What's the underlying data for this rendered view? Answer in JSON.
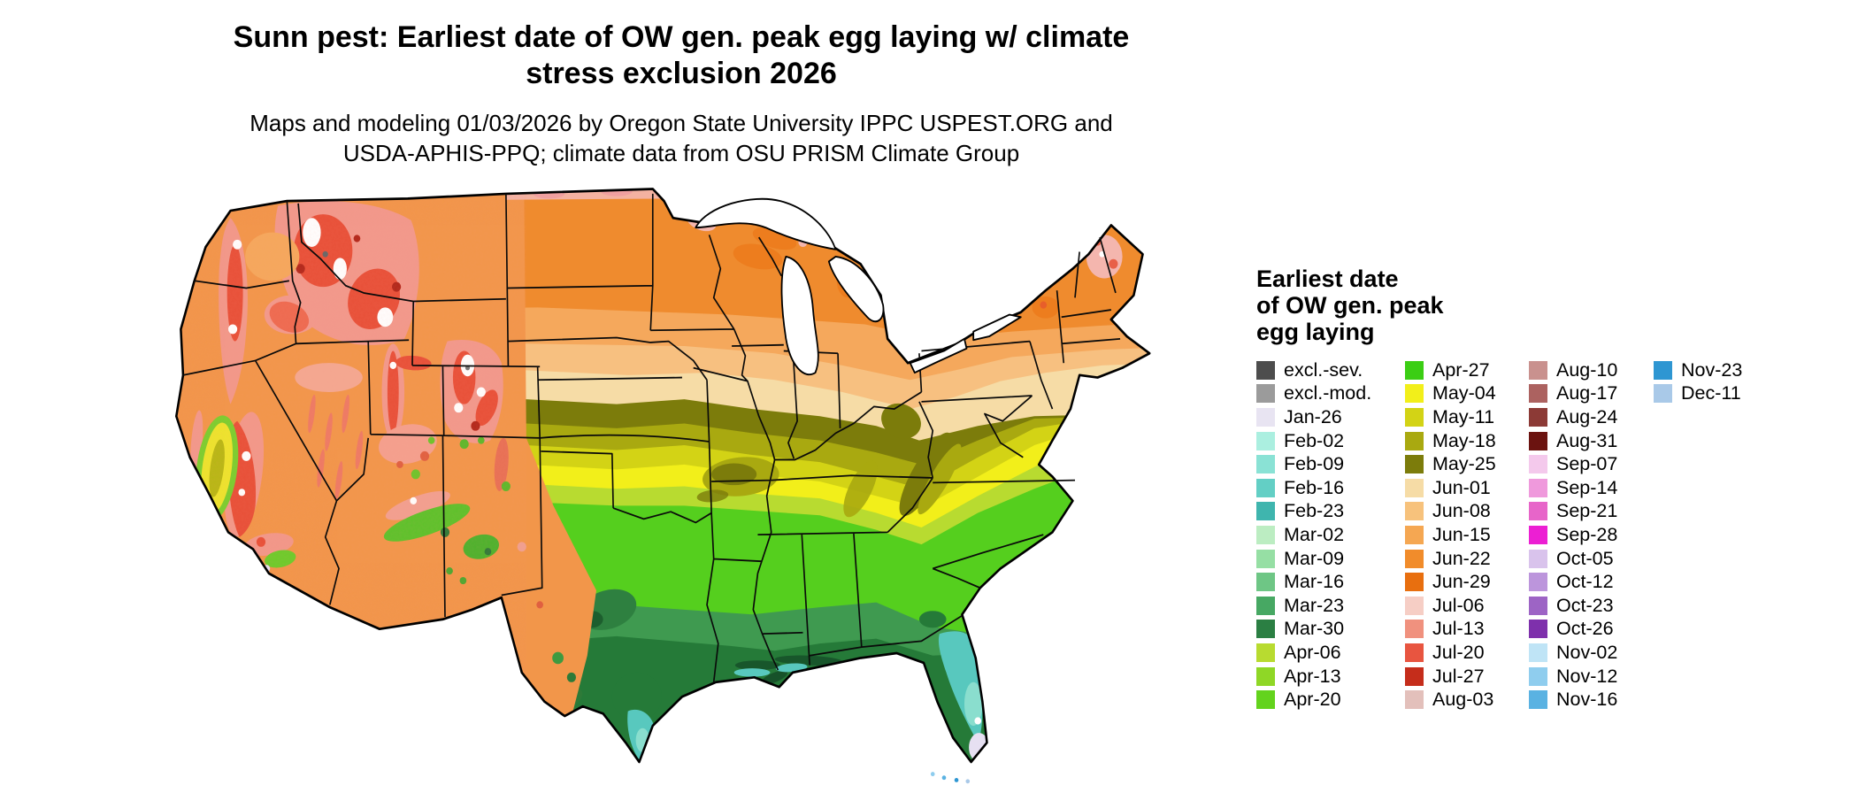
{
  "title": {
    "lines": [
      "Sunn pest: Earliest date of OW gen. peak egg laying w/ climate",
      "stress exclusion 2026"
    ]
  },
  "subtitle": {
    "lines": [
      "Maps and modeling 01/03/2026 by Oregon State University IPPC USPEST.ORG and",
      "USDA-APHIS-PPQ; climate data from OSU PRISM Climate Group"
    ]
  },
  "legend": {
    "title_lines": [
      "Earliest date",
      "of OW gen. peak",
      "egg laying"
    ],
    "columns": [
      [
        {
          "label": "excl.-sev.",
          "color": "#4D4D4D"
        },
        {
          "label": "excl.-mod.",
          "color": "#9B9B9B"
        },
        {
          "label": "Jan-26",
          "color": "#E8E4F2"
        },
        {
          "label": "Feb-02",
          "color": "#ABEFE0"
        },
        {
          "label": "Feb-09",
          "color": "#8AE2D5"
        },
        {
          "label": "Feb-16",
          "color": "#63CFC5"
        },
        {
          "label": "Feb-23",
          "color": "#3FB5AE"
        },
        {
          "label": "Mar-02",
          "color": "#BCEDC2"
        },
        {
          "label": "Mar-09",
          "color": "#96DFA4"
        },
        {
          "label": "Mar-16",
          "color": "#6EC685"
        },
        {
          "label": "Mar-23",
          "color": "#47A863"
        },
        {
          "label": "Mar-30",
          "color": "#2B7F43"
        },
        {
          "label": "Apr-06",
          "color": "#B8DB30"
        },
        {
          "label": "Apr-13",
          "color": "#8FD726"
        },
        {
          "label": "Apr-20",
          "color": "#63D31D"
        }
      ],
      [
        {
          "label": "Apr-27",
          "color": "#3BCE14"
        },
        {
          "label": "May-04",
          "color": "#F2EF1A"
        },
        {
          "label": "May-11",
          "color": "#D3D315"
        },
        {
          "label": "May-18",
          "color": "#A9A910"
        },
        {
          "label": "May-25",
          "color": "#7C7C0B"
        },
        {
          "label": "Jun-01",
          "color": "#F6DCA6"
        },
        {
          "label": "Jun-08",
          "color": "#F7C27C"
        },
        {
          "label": "Jun-15",
          "color": "#F5A752"
        },
        {
          "label": "Jun-22",
          "color": "#F18C2B"
        },
        {
          "label": "Jun-29",
          "color": "#E86F0F"
        },
        {
          "label": "Jul-06",
          "color": "#F6CEC5"
        },
        {
          "label": "Jul-13",
          "color": "#F0917E"
        },
        {
          "label": "Jul-20",
          "color": "#E85540"
        },
        {
          "label": "Jul-27",
          "color": "#C52D1B"
        },
        {
          "label": "Aug-03",
          "color": "#E3C0BB"
        }
      ],
      [
        {
          "label": "Aug-10",
          "color": "#C9918E"
        },
        {
          "label": "Aug-17",
          "color": "#AC6260"
        },
        {
          "label": "Aug-24",
          "color": "#8C3A36"
        },
        {
          "label": "Aug-31",
          "color": "#6B1310"
        },
        {
          "label": "Sep-07",
          "color": "#F4C9EC"
        },
        {
          "label": "Sep-14",
          "color": "#EF99DC"
        },
        {
          "label": "Sep-21",
          "color": "#E765C9"
        },
        {
          "label": "Sep-28",
          "color": "#EC1FD3"
        },
        {
          "label": "Oct-05",
          "color": "#D9C3EC"
        },
        {
          "label": "Oct-12",
          "color": "#BC95DC"
        },
        {
          "label": "Oct-23",
          "color": "#9D64C5"
        },
        {
          "label": "Oct-26",
          "color": "#7E30AC"
        },
        {
          "label": "Nov-02",
          "color": "#BFE4F6"
        },
        {
          "label": "Nov-12",
          "color": "#8FCDEE"
        },
        {
          "label": "Nov-16",
          "color": "#5AB2E2"
        }
      ],
      [
        {
          "label": "Nov-23",
          "color": "#2E96D2"
        },
        {
          "label": "Dec-11",
          "color": "#A9C9E8"
        }
      ]
    ]
  }
}
